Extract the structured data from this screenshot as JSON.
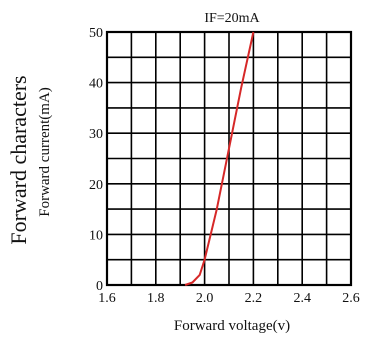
{
  "chart_data": {
    "type": "line",
    "title": "Forward characters",
    "annotation": "IF=20mA",
    "xlabel": "Forward voltage(v)",
    "ylabel": "Forward current(mA)",
    "xlim": [
      1.6,
      2.6
    ],
    "ylim": [
      0,
      50
    ],
    "x_ticks": [
      1.6,
      1.8,
      2.0,
      2.2,
      2.4,
      2.6
    ],
    "x_tick_labels": [
      "1.6",
      "1.8",
      "2.0",
      "2.2",
      "2.4",
      "2.6"
    ],
    "y_ticks": [
      0,
      10,
      20,
      30,
      40,
      50
    ],
    "y_tick_labels": [
      "0",
      "10",
      "20",
      "30",
      "40",
      "50"
    ],
    "grid": true,
    "line_color": "#d62828",
    "series": [
      {
        "x": [
          1.92,
          1.95,
          1.98,
          2.0,
          2.05,
          2.1,
          2.15,
          2.2
        ],
        "y": [
          0,
          0.5,
          2,
          5,
          15,
          27,
          39,
          50
        ]
      }
    ]
  }
}
